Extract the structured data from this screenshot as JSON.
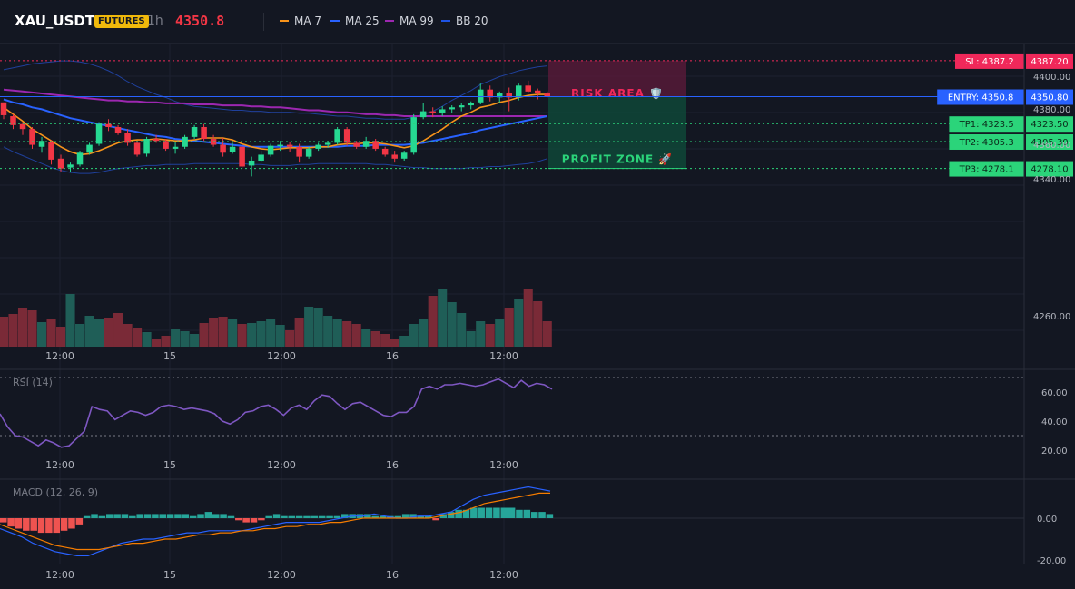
{
  "header": {
    "symbol": "XAU_USDT",
    "badge": "FUTURES",
    "timeframe": "1h",
    "price": "4350.8",
    "legend": [
      {
        "label": "MA 7",
        "color": "#f7931a"
      },
      {
        "label": "MA 25",
        "color": "#2962ff"
      },
      {
        "label": "MA 99",
        "color": "#9c27b0"
      },
      {
        "label": "BB 20",
        "color": "#1e53e5"
      }
    ]
  },
  "chart_data": [
    {
      "type": "candlestick",
      "x_ticks": [
        "12:00",
        "15",
        "12:00",
        "16",
        "12:00"
      ],
      "y_ticks": [
        "4400.00",
        "4380.00",
        "4360.00",
        "4340.00",
        "4260.00"
      ],
      "ylim": [
        4248,
        4405
      ],
      "candles": [
        [
          4345,
          4345,
          4328,
          4332
        ],
        [
          4331,
          4333,
          4318,
          4322
        ],
        [
          4323,
          4325,
          4312,
          4318
        ],
        [
          4318,
          4320,
          4298,
          4302
        ],
        [
          4300,
          4310,
          4294,
          4306
        ],
        [
          4305,
          4307,
          4282,
          4287
        ],
        [
          4288,
          4292,
          4275,
          4278
        ],
        [
          4279,
          4284,
          4274,
          4282
        ],
        [
          4282,
          4296,
          4280,
          4294
        ],
        [
          4294,
          4304,
          4292,
          4302
        ],
        [
          4303,
          4325,
          4301,
          4323
        ],
        [
          4323,
          4328,
          4316,
          4320
        ],
        [
          4320,
          4322,
          4312,
          4314
        ],
        [
          4314,
          4318,
          4301,
          4304
        ],
        [
          4304,
          4306,
          4290,
          4292
        ],
        [
          4293,
          4310,
          4290,
          4308
        ],
        [
          4308,
          4312,
          4304,
          4306
        ],
        [
          4306,
          4308,
          4296,
          4298
        ],
        [
          4298,
          4305,
          4293,
          4300
        ],
        [
          4300,
          4312,
          4298,
          4310
        ],
        [
          4310,
          4322,
          4308,
          4320
        ],
        [
          4320,
          4323,
          4306,
          4308
        ],
        [
          4308,
          4312,
          4300,
          4302
        ],
        [
          4302,
          4309,
          4290,
          4294
        ],
        [
          4295,
          4304,
          4293,
          4300
        ],
        [
          4300,
          4302,
          4278,
          4280
        ],
        [
          4281,
          4290,
          4270,
          4286
        ],
        [
          4286,
          4296,
          4284,
          4292
        ],
        [
          4292,
          4303,
          4290,
          4301
        ],
        [
          4301,
          4306,
          4296,
          4302
        ],
        [
          4302,
          4305,
          4295,
          4300
        ],
        [
          4300,
          4303,
          4284,
          4290
        ],
        [
          4290,
          4300,
          4288,
          4298
        ],
        [
          4298,
          4304,
          4296,
          4302
        ],
        [
          4302,
          4306,
          4299,
          4304
        ],
        [
          4304,
          4320,
          4302,
          4318
        ],
        [
          4318,
          4320,
          4301,
          4304
        ],
        [
          4304,
          4306,
          4298,
          4300
        ],
        [
          4300,
          4310,
          4298,
          4306
        ],
        [
          4306,
          4308,
          4296,
          4298
        ],
        [
          4298,
          4300,
          4290,
          4292
        ],
        [
          4292,
          4296,
          4284,
          4288
        ],
        [
          4288,
          4296,
          4286,
          4294
        ],
        [
          4294,
          4333,
          4292,
          4330
        ],
        [
          4330,
          4344,
          4328,
          4336
        ],
        [
          4336,
          4340,
          4330,
          4334
        ],
        [
          4334,
          4341,
          4331,
          4338
        ],
        [
          4338,
          4342,
          4334,
          4340
        ],
        [
          4340,
          4344,
          4336,
          4342
        ],
        [
          4342,
          4346,
          4338,
          4344
        ],
        [
          4345,
          4364,
          4343,
          4358
        ],
        [
          4358,
          4362,
          4346,
          4350
        ],
        [
          4350,
          4356,
          4344,
          4354
        ],
        [
          4354,
          4360,
          4336,
          4350
        ],
        [
          4350,
          4364,
          4347,
          4362
        ],
        [
          4362,
          4367,
          4354,
          4356
        ],
        [
          4357,
          4359,
          4348,
          4354
        ],
        [
          4354,
          4356,
          4350,
          4350.8
        ]
      ],
      "overlays": {
        "ma7": [
          4340,
          4333,
          4326,
          4318,
          4312,
          4306,
          4300,
          4295,
          4292,
          4293,
          4296,
          4300,
          4304,
          4306,
          4307,
          4307,
          4308,
          4307,
          4306,
          4306,
          4307,
          4309,
          4309,
          4309,
          4307,
          4303,
          4300,
          4298,
          4297,
          4298,
          4299,
          4299,
          4299,
          4300,
          4300,
          4302,
          4303,
          4303,
          4304,
          4304,
          4303,
          4301,
          4299,
          4301,
          4306,
          4312,
          4318,
          4325,
          4331,
          4335,
          4340,
          4342,
          4345,
          4347,
          4350,
          4352,
          4353,
          4353
        ],
        "ma25": [
          4348,
          4345,
          4343,
          4340,
          4338,
          4335,
          4332,
          4329,
          4327,
          4325,
          4323,
          4321,
          4319,
          4317,
          4315,
          4313,
          4311,
          4310,
          4308,
          4307,
          4306,
          4305,
          4304,
          4303,
          4302,
          4301,
          4300,
          4300,
          4300,
          4300,
          4300,
          4300,
          4300,
          4300,
          4300,
          4300,
          4301,
          4301,
          4301,
          4302,
          4302,
          4302,
          4302,
          4303,
          4304,
          4306,
          4308,
          4310,
          4312,
          4314,
          4317,
          4319,
          4321,
          4323,
          4325,
          4327,
          4329,
          4331
        ],
        "ma99": [
          4358,
          4357,
          4356,
          4355,
          4354,
          4353,
          4352,
          4351,
          4350,
          4349,
          4348,
          4347,
          4347,
          4346,
          4346,
          4345,
          4345,
          4344,
          4344,
          4344,
          4343,
          4343,
          4343,
          4342,
          4342,
          4342,
          4341,
          4341,
          4340,
          4340,
          4339,
          4338,
          4337,
          4337,
          4336,
          4335,
          4335,
          4334,
          4333,
          4333,
          4332,
          4332,
          4331,
          4331,
          4331,
          4331,
          4331,
          4331,
          4331,
          4331,
          4331,
          4331,
          4331,
          4331,
          4331,
          4331,
          4331,
          4331
        ],
        "bb_upper": [
          4378,
          4380,
          4382,
          4384,
          4385,
          4386,
          4387,
          4387,
          4386,
          4384,
          4381,
          4377,
          4372,
          4366,
          4361,
          4357,
          4353,
          4350,
          4346,
          4343,
          4341,
          4340,
          4339,
          4338,
          4337,
          4337,
          4336,
          4336,
          4335,
          4335,
          4335,
          4334,
          4334,
          4333,
          4332,
          4331,
          4331,
          4330,
          4329,
          4329,
          4328,
          4328,
          4328,
          4330,
          4333,
          4336,
          4341,
          4347,
          4352,
          4357,
          4363,
          4367,
          4371,
          4374,
          4377,
          4379,
          4381,
          4382
        ],
        "bb_lower": [
          4300,
          4295,
          4291,
          4287,
          4283,
          4279,
          4276,
          4274,
          4273,
          4273,
          4274,
          4276,
          4278,
          4279,
          4280,
          4281,
          4281,
          4282,
          4282,
          4282,
          4283,
          4283,
          4283,
          4283,
          4283,
          4283,
          4282,
          4282,
          4281,
          4281,
          4281,
          4282,
          4282,
          4283,
          4283,
          4283,
          4283,
          4283,
          4283,
          4282,
          4282,
          4281,
          4280,
          4279,
          4279,
          4278,
          4278,
          4278,
          4278,
          4279,
          4279,
          4280,
          4280,
          4281,
          4282,
          4283,
          4285,
          4288
        ]
      },
      "volume": [
        33,
        36,
        43,
        40,
        27,
        31,
        22,
        58,
        25,
        34,
        30,
        32,
        37,
        25,
        21,
        16,
        9,
        12,
        19,
        17,
        14,
        26,
        32,
        33,
        30,
        25,
        26,
        28,
        31,
        24,
        18,
        32,
        44,
        43,
        34,
        31,
        28,
        25,
        20,
        17,
        14,
        9,
        12,
        25,
        30,
        56,
        64,
        49,
        37,
        17,
        28,
        25,
        30,
        43,
        52,
        64,
        50,
        28
      ]
    },
    {
      "type": "line",
      "name": "RSI (14)",
      "title": "RSI (14)",
      "y_ticks": [
        "60.00",
        "40.00",
        "20.00"
      ],
      "ylim": [
        15,
        74
      ],
      "guides": [
        70,
        30
      ],
      "values": [
        45,
        36,
        30,
        29,
        26,
        23,
        27,
        25,
        22,
        23,
        28,
        33,
        50,
        48,
        47,
        41,
        44,
        47,
        46,
        44,
        46,
        50,
        51,
        50,
        48,
        49,
        48,
        47,
        45,
        40,
        38,
        41,
        46,
        47,
        50,
        51,
        48,
        44,
        49,
        51,
        48,
        54,
        58,
        57,
        52,
        48,
        52,
        53,
        50,
        47,
        44,
        43,
        46,
        46,
        50,
        62,
        64,
        62,
        65,
        65,
        66,
        65,
        64,
        65,
        67,
        69,
        66,
        63,
        68,
        64,
        66,
        65,
        62
      ]
    },
    {
      "type": "bar",
      "name": "MACD (12, 26, 9)",
      "title": "MACD (12, 26, 9)",
      "y_ticks": [
        "0.00",
        "-20.00"
      ],
      "ylim": [
        -26,
        20
      ],
      "histogram": [
        -2,
        -4,
        -5,
        -6,
        -6,
        -7,
        -7,
        -7,
        -6,
        -5,
        -3,
        1,
        2,
        1,
        2,
        2,
        2,
        1,
        2,
        2,
        2,
        2,
        2,
        2,
        2,
        1,
        2,
        3,
        2,
        2,
        1,
        -1,
        -2,
        -2,
        -1,
        1,
        2,
        1,
        1,
        1,
        1,
        1,
        1,
        1,
        1,
        2,
        2,
        2,
        2,
        1,
        1,
        1,
        1,
        2,
        2,
        1,
        1,
        -1,
        2,
        3,
        4,
        4,
        5,
        5,
        5,
        5,
        5,
        5,
        4,
        4,
        3,
        3,
        2
      ],
      "macd": [
        -5,
        -7,
        -9,
        -12,
        -14,
        -16,
        -17,
        -18,
        -18,
        -16,
        -14,
        -12,
        -11,
        -10,
        -10,
        -9,
        -8,
        -7,
        -7,
        -6,
        -6,
        -6,
        -6,
        -5,
        -4,
        -3,
        -2,
        -2,
        -2,
        -2,
        -1,
        0,
        1,
        1,
        2,
        1,
        0,
        0,
        1,
        1,
        2,
        3,
        6,
        9,
        11,
        12,
        13,
        14,
        15,
        14,
        13
      ],
      "signal": [
        -3,
        -5,
        -7,
        -9,
        -11,
        -13,
        -14,
        -15,
        -15,
        -15,
        -14,
        -13,
        -12,
        -12,
        -11,
        -10,
        -10,
        -9,
        -8,
        -8,
        -7,
        -7,
        -6,
        -6,
        -5,
        -5,
        -4,
        -4,
        -3,
        -3,
        -2,
        -2,
        -1,
        0,
        0,
        0,
        0,
        0,
        0,
        0,
        1,
        2,
        3,
        5,
        7,
        8,
        9,
        10,
        11,
        12,
        12
      ]
    }
  ],
  "levels": {
    "sl": {
      "label": "SL: 4387.2",
      "value": "4387.20",
      "price": 4387.2
    },
    "entry": {
      "label": "ENTRY: 4350.8",
      "value": "4350.80",
      "price": 4350.8
    },
    "tp1": {
      "label": "TP1: 4323.5",
      "value": "4323.50",
      "price": 4323.5
    },
    "tp2": {
      "label": "TP2: 4305.3",
      "value": "4305.30",
      "price": 4305.3
    },
    "tp3": {
      "label": "TP3: 4278.1",
      "value": "4278.10",
      "price": 4278.1
    }
  },
  "zones": {
    "risk": "RISK AREA 🛡️",
    "profit": "PROFIT ZONE 🚀"
  },
  "colors": {
    "up": "#26d992",
    "down": "#f23645",
    "volume_up": "#1f5e57",
    "volume_down": "#7a2a37",
    "sl": "#f0285a",
    "entry": "#2962ff",
    "tp": "#2bd47a",
    "rsi": "#7e57c2",
    "hist_up": "#26a69a",
    "hist_down": "#ef5350",
    "macd": "#2962ff",
    "signal": "#f57c00"
  }
}
